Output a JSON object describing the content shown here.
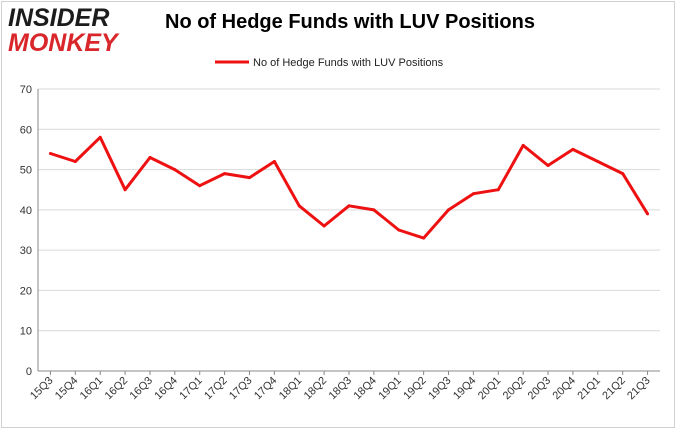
{
  "brand": {
    "line1": "INSIDER",
    "line2": "MONKEY"
  },
  "colors": {
    "series": "#ee1111",
    "grid": "#d9d9d9",
    "axis": "#888888",
    "brand_red": "#d8262a"
  },
  "chart_data": {
    "type": "line",
    "title": "No of Hedge Funds with LUV Positions",
    "xlabel": "",
    "ylabel": "",
    "ylim": [
      0,
      70
    ],
    "yticks": [
      0,
      10,
      20,
      30,
      40,
      50,
      60,
      70
    ],
    "grid": true,
    "legend_position": "top-center",
    "categories": [
      "15Q3",
      "15Q4",
      "16Q1",
      "16Q2",
      "16Q3",
      "16Q4",
      "17Q1",
      "17Q2",
      "17Q3",
      "17Q4",
      "18Q1",
      "18Q2",
      "18Q3",
      "18Q4",
      "19Q1",
      "19Q2",
      "19Q3",
      "19Q4",
      "20Q1",
      "20Q2",
      "20Q3",
      "20Q4",
      "21Q1",
      "21Q2",
      "21Q3"
    ],
    "series": [
      {
        "name": "No of Hedge Funds with LUV Positions",
        "values": [
          54,
          52,
          58,
          45,
          53,
          50,
          46,
          49,
          48,
          52,
          41,
          36,
          41,
          40,
          35,
          33,
          40,
          44,
          45,
          56,
          51,
          55,
          52,
          49,
          39
        ]
      }
    ]
  }
}
